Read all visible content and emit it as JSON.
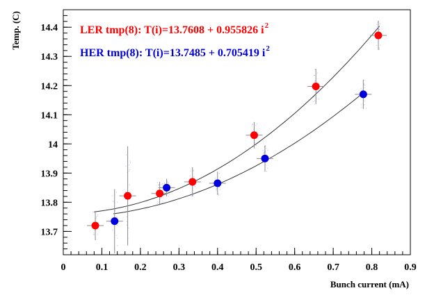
{
  "chart_data": {
    "type": "scatter",
    "xlabel": "Bunch current (mA)",
    "ylabel": "Temp. (C)",
    "xlim": [
      0,
      0.9
    ],
    "ylim": [
      13.62,
      14.46
    ],
    "x_ticks": [
      "0",
      "0.1",
      "0.2",
      "0.3",
      "0.4",
      "0.5",
      "0.6",
      "0.7",
      "0.8",
      "0.9"
    ],
    "y_ticks": [
      "13.7",
      "13.8",
      "13.9",
      "14",
      "14.1",
      "14.2",
      "14.3",
      "14.4"
    ],
    "grid": false,
    "series": [
      {
        "name": "LER tmp(8)",
        "label": "LER tmp(8): T(i)=13.7608 + 0.955826 i",
        "label_exponent": "2",
        "color": "#ff0000",
        "fit": {
          "a": 13.7608,
          "b": 0.955826,
          "x_range": [
            0.08,
            0.82
          ]
        },
        "points": [
          {
            "x": 0.083,
            "y": 13.72,
            "yerr": 0.05
          },
          {
            "x": 0.167,
            "y": 13.822,
            "yerr": 0.17
          },
          {
            "x": 0.25,
            "y": 13.83,
            "yerr": 0.04
          },
          {
            "x": 0.335,
            "y": 13.87,
            "yerr": 0.05
          },
          {
            "x": 0.495,
            "y": 14.03,
            "yerr": 0.045
          },
          {
            "x": 0.655,
            "y": 14.197,
            "yerr": 0.06
          },
          {
            "x": 0.817,
            "y": 14.372,
            "yerr": 0.05
          }
        ]
      },
      {
        "name": "HER tmp(8)",
        "label": "HER tmp(8): T(i)=13.7485 + 0.705419 i",
        "label_exponent": "2",
        "color": "#0000dd",
        "fit": {
          "a": 13.7485,
          "b": 0.705419,
          "x_range": [
            0.13,
            0.78
          ]
        },
        "points": [
          {
            "x": 0.133,
            "y": 13.735,
            "yerr": 0.11
          },
          {
            "x": 0.268,
            "y": 13.85,
            "yerr": 0.03
          },
          {
            "x": 0.4,
            "y": 13.865,
            "yerr": 0.04
          },
          {
            "x": 0.523,
            "y": 13.95,
            "yerr": 0.045
          },
          {
            "x": 0.778,
            "y": 14.17,
            "yerr": 0.05
          }
        ]
      }
    ]
  }
}
